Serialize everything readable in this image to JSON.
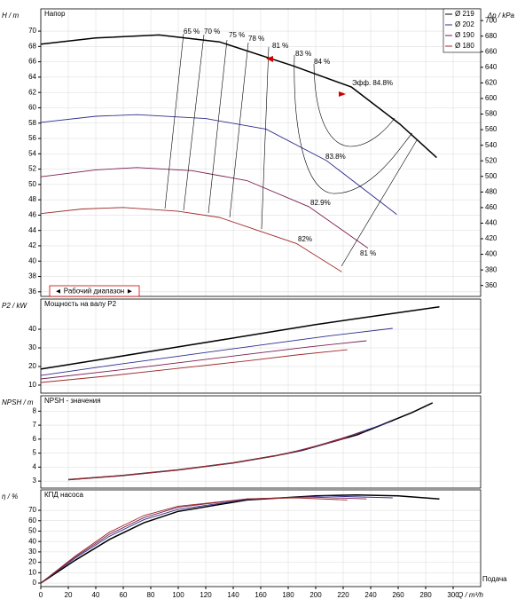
{
  "chart_data": [
    {
      "type": "line",
      "title": "Напор",
      "ylabel": "H / m",
      "y2label": "Δp / kPa",
      "range_label": "◄ Рабочий диапазон ►",
      "xlim": [
        0,
        320
      ],
      "ylim": [
        35.4,
        72.9
      ],
      "yticks": [
        36,
        38,
        40,
        42,
        44,
        46,
        48,
        50,
        52,
        54,
        56,
        58,
        60,
        62,
        64,
        66,
        68,
        70
      ],
      "y2lim": [
        346,
        715
      ],
      "y2ticks": [
        360,
        380,
        400,
        420,
        440,
        460,
        480,
        500,
        520,
        540,
        560,
        580,
        600,
        620,
        640,
        660,
        680,
        700
      ],
      "grid": true,
      "annotations": [
        "65 %",
        "70 %",
        "75 %",
        "78 %",
        "81 %",
        "83 %",
        "84 %",
        "Эфф.  84.8%",
        "83.8%",
        "82.9%",
        "82%",
        "81 %"
      ],
      "series": [
        {
          "name": "Ø 219",
          "color": "#000000",
          "x": [
            0,
            40,
            86,
            130,
            183,
            226,
            261,
            288
          ],
          "values": [
            68.3,
            69.1,
            69.5,
            68.6,
            65.5,
            62.7,
            57.9,
            53.5
          ]
        },
        {
          "name": "Ø 202",
          "color": "#2e2e8c",
          "x": [
            0,
            40,
            70,
            120,
            164,
            208,
            259
          ],
          "values": [
            58.1,
            58.9,
            59.1,
            58.6,
            57.2,
            53.1,
            46.1
          ]
        },
        {
          "name": "Ø 190",
          "color": "#7a1e50",
          "x": [
            0,
            40,
            70,
            110,
            150,
            195,
            238
          ],
          "values": [
            51.0,
            51.9,
            52.2,
            51.8,
            50.5,
            47.1,
            41.7
          ]
        },
        {
          "name": "Ø 180",
          "color": "#a02828",
          "x": [
            0,
            30,
            60,
            100,
            130,
            186,
            219
          ],
          "values": [
            46.2,
            46.8,
            47.0,
            46.5,
            45.7,
            42.3,
            38.6
          ]
        }
      ]
    },
    {
      "type": "line",
      "title": "Мощность на валу P2",
      "ylabel": "P2 / kW",
      "xlim": [
        0,
        320
      ],
      "ylim": [
        5.7,
        56.2
      ],
      "yticks": [
        10,
        20,
        30,
        40
      ],
      "grid": true,
      "series": [
        {
          "color": "#000000",
          "x": [
            0,
            50,
            100,
            150,
            200,
            230,
            290
          ],
          "values": [
            18.6,
            24.5,
            30.5,
            36.5,
            42.5,
            45.7,
            52.0
          ]
        },
        {
          "color": "#2e2e8c",
          "x": [
            0,
            50,
            100,
            150,
            210,
            256
          ],
          "values": [
            15.2,
            20.5,
            25.5,
            30.5,
            36.5,
            40.5
          ]
        },
        {
          "color": "#7a1e50",
          "x": [
            0,
            50,
            100,
            150,
            195,
            237
          ],
          "values": [
            13.3,
            17.5,
            22.0,
            26.5,
            30.5,
            33.8
          ]
        },
        {
          "color": "#a02828",
          "x": [
            0,
            50,
            100,
            150,
            186,
            223
          ],
          "values": [
            11.4,
            15.0,
            19.0,
            23.0,
            26.2,
            29.0
          ]
        }
      ]
    },
    {
      "type": "line",
      "title": "NPSH - значения",
      "ylabel": "NPSH / m",
      "xlim": [
        0,
        320
      ],
      "ylim": [
        2.5,
        9.1
      ],
      "yticks": [
        3,
        4,
        5,
        6,
        7,
        8
      ],
      "grid": true,
      "series": [
        {
          "color": "#000000",
          "x": [
            20,
            60,
            100,
            140,
            170,
            190,
            210,
            230,
            250,
            270,
            285
          ],
          "values": [
            3.1,
            3.4,
            3.8,
            4.3,
            4.8,
            5.2,
            5.75,
            6.3,
            7.1,
            7.9,
            8.6
          ]
        },
        {
          "color": "#2e2e8c",
          "x": [
            20,
            60,
            100,
            140,
            170,
            190,
            210,
            256
          ],
          "values": [
            3.1,
            3.4,
            3.8,
            4.3,
            4.8,
            5.2,
            5.75,
            7.3
          ]
        },
        {
          "color": "#7a1e50",
          "x": [
            20,
            60,
            100,
            140,
            170,
            195,
            237
          ],
          "values": [
            3.1,
            3.4,
            3.8,
            4.3,
            4.8,
            5.35,
            6.6
          ]
        },
        {
          "color": "#a02828",
          "x": [
            20,
            60,
            100,
            140,
            170,
            186,
            223
          ],
          "values": [
            3.1,
            3.4,
            3.8,
            4.3,
            4.8,
            5.15,
            6.1
          ]
        }
      ]
    },
    {
      "type": "line",
      "title": "КПД насоса",
      "ylabel": "η / %",
      "xlabel": "Q / m³/h",
      "xname": "Подача",
      "xlim": [
        0,
        320
      ],
      "ylim": [
        -3.4,
        89.7
      ],
      "yticks": [
        0,
        10,
        20,
        30,
        40,
        50,
        60,
        70
      ],
      "xticks": [
        0,
        20,
        40,
        60,
        80,
        100,
        120,
        140,
        160,
        180,
        200,
        220,
        240,
        260,
        280,
        300
      ],
      "grid": true,
      "series": [
        {
          "color": "#000000",
          "x": [
            0,
            25,
            50,
            75,
            100,
            150,
            200,
            230,
            260,
            290
          ],
          "values": [
            0,
            22,
            42,
            58,
            69,
            80,
            84,
            84.8,
            84,
            81
          ]
        },
        {
          "color": "#2e2e8c",
          "x": [
            0,
            25,
            50,
            75,
            100,
            150,
            208,
            256
          ],
          "values": [
            0,
            24,
            45,
            61,
            71,
            80.5,
            83.8,
            82
          ]
        },
        {
          "color": "#7a1e50",
          "x": [
            0,
            25,
            50,
            75,
            100,
            150,
            195,
            237
          ],
          "values": [
            0,
            25,
            47,
            63,
            73,
            81,
            82.9,
            81
          ]
        },
        {
          "color": "#a02828",
          "x": [
            0,
            25,
            50,
            75,
            100,
            150,
            186,
            223
          ],
          "values": [
            0,
            26,
            49,
            65,
            74,
            81,
            82,
            80
          ]
        }
      ]
    }
  ]
}
